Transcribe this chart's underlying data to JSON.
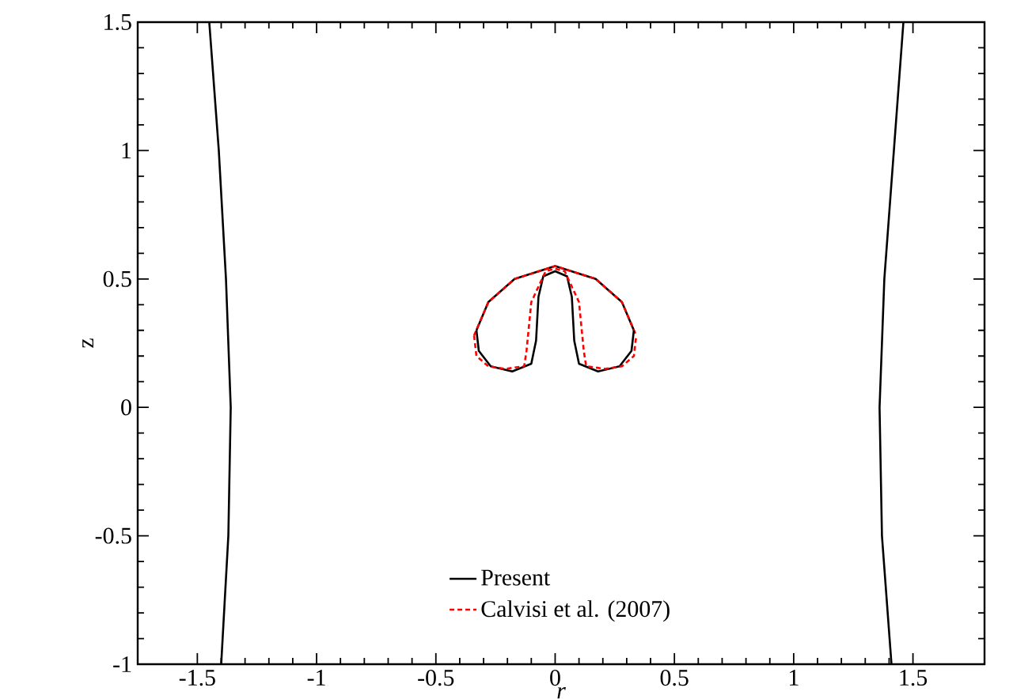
{
  "chart_data": {
    "type": "line",
    "xlabel": "r",
    "ylabel": "z",
    "xlim": [
      -1.75,
      1.8
    ],
    "ylim": [
      -1,
      1.5
    ],
    "xticks": [
      -1.5,
      -1,
      -0.5,
      0,
      0.5,
      1,
      1.5
    ],
    "yticks": [
      -1,
      -0.5,
      0,
      0.5,
      1,
      1.5
    ],
    "grid": false,
    "legend": "bottom",
    "marker": "none",
    "series": [
      {
        "name": "Present",
        "color": "#000000",
        "line_style": "solid",
        "x": [
          -0.33,
          -0.28,
          -0.17,
          0,
          0.17,
          0.28,
          0.33
        ],
        "values": [
          0.3,
          0.41,
          0.5,
          0.55,
          0.5,
          0.41,
          0.3
        ]
      },
      {
        "name": "Calvisi et al. (2007)",
        "color": "#ff0000",
        "line_style": "dashed",
        "x": [
          -0.34,
          -0.28,
          -0.17,
          0,
          0.17,
          0.28,
          0.34
        ],
        "values": [
          0.28,
          0.41,
          0.5,
          0.55,
          0.5,
          0.41,
          0.28
        ]
      },
      {
        "color": "#000000",
        "line_style": "solid",
        "x": [
          -0.33,
          -0.32,
          -0.27,
          -0.18,
          -0.1,
          -0.08,
          -0.07,
          -0.05,
          0,
          0.05,
          0.07,
          0.08,
          0.1,
          0.18,
          0.27,
          0.32,
          0.33
        ],
        "values": [
          0.3,
          0.22,
          0.16,
          0.14,
          0.17,
          0.26,
          0.43,
          0.51,
          0.53,
          0.51,
          0.43,
          0.26,
          0.17,
          0.14,
          0.16,
          0.22,
          0.3
        ]
      },
      {
        "color": "#ff0000",
        "line_style": "dashed",
        "x": [
          -0.34,
          -0.33,
          -0.28,
          -0.21,
          -0.13,
          -0.12,
          -0.1,
          -0.04,
          0,
          0.04,
          0.1,
          0.12,
          0.13,
          0.21,
          0.28,
          0.33,
          0.34
        ],
        "values": [
          0.28,
          0.2,
          0.16,
          0.15,
          0.16,
          0.22,
          0.41,
          0.53,
          0.54,
          0.53,
          0.41,
          0.22,
          0.16,
          0.15,
          0.16,
          0.2,
          0.28
        ]
      },
      {
        "color": "#000000",
        "line_style": "solid",
        "x": [
          -1.45,
          -1.41,
          -1.38,
          -1.36,
          -1.37,
          -1.4
        ],
        "values": [
          1.5,
          1.0,
          0.5,
          0,
          -0.5,
          -1
        ]
      },
      {
        "color": "#000000",
        "line_style": "solid",
        "x": [
          1.46,
          1.42,
          1.38,
          1.36,
          1.37,
          1.41
        ],
        "values": [
          1.5,
          1.0,
          0.5,
          0,
          -0.5,
          -1
        ]
      }
    ]
  }
}
